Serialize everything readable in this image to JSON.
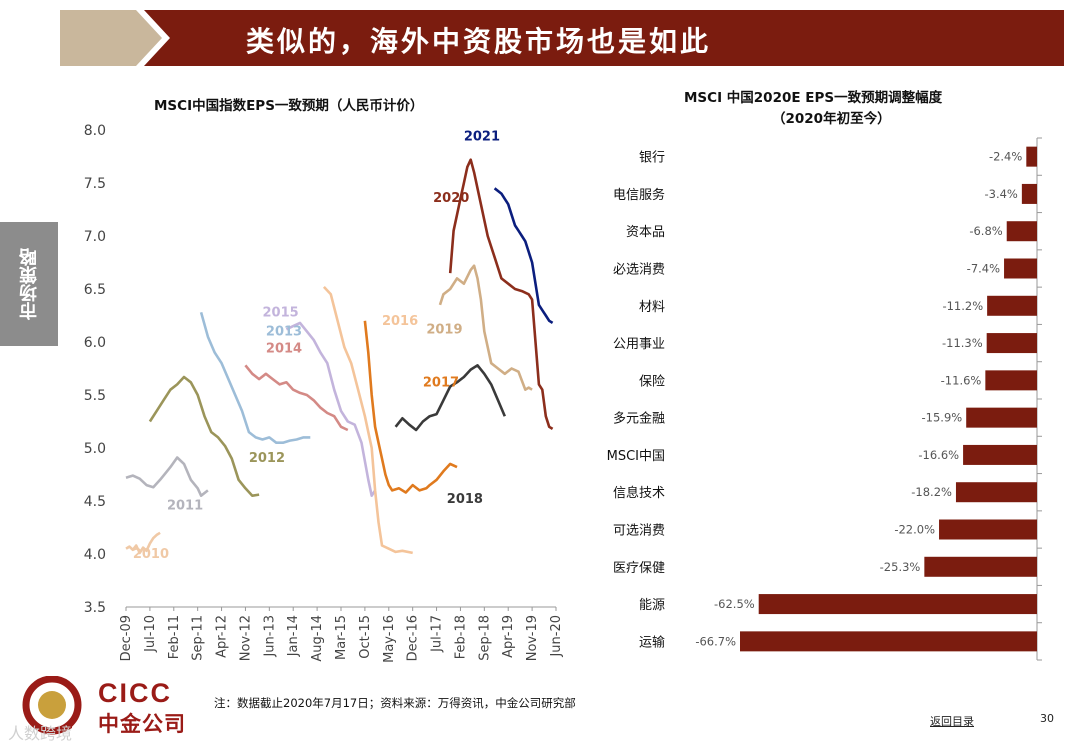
{
  "header": {
    "title": "类似的，海外中资股市场也是如此"
  },
  "side_tab": {
    "label": "市场策略"
  },
  "left_chart_title": "MSCI中国指数EPS一致预期（人民币计价）",
  "right_chart_title_line1": "MSCI 中国2020E EPS一致预期调整幅度",
  "right_chart_title_line2": "（2020年初至今）",
  "colors": {
    "banner": "#7b1c0f",
    "banner_light": "#c9b79c",
    "bar": "#7b1c0f",
    "logo": "#9a1b17"
  },
  "chart_data": [
    {
      "type": "line",
      "title": "MSCI中国指数EPS一致预期（人民币计价）",
      "xlabel": "",
      "ylabel": "",
      "ylim": [
        3.5,
        8.0
      ],
      "yticks": [
        "8.0",
        "7.5",
        "7.0",
        "6.5",
        "6.0",
        "5.5",
        "5.0",
        "4.5",
        "4.0",
        "3.5"
      ],
      "x_tick_labels": [
        "Dec-09",
        "Jul-10",
        "Feb-11",
        "Sep-11",
        "Apr-12",
        "Nov-12",
        "Jun-13",
        "Jan-14",
        "Aug-14",
        "Mar-15",
        "Oct-15",
        "May-16",
        "Dec-16",
        "Jul-17",
        "Feb-18",
        "Sep-18",
        "Apr-19",
        "Nov-19",
        "Jun-20"
      ],
      "x_unit": "months since Dec-09",
      "series": [
        {
          "name": "2010",
          "color": "#f0c9a6",
          "x": [
            0,
            1,
            2,
            3,
            4,
            5,
            6,
            7,
            8,
            9,
            10
          ],
          "y": [
            4.05,
            4.07,
            4.04,
            4.08,
            4.01,
            4.06,
            4.03,
            4.1,
            4.15,
            4.18,
            4.2
          ]
        },
        {
          "name": "2011",
          "color": "#b4b4bc",
          "x": [
            0,
            2,
            4,
            6,
            8,
            10,
            12,
            13,
            15,
            17,
            19,
            21,
            22,
            24
          ],
          "y": [
            4.72,
            4.74,
            4.71,
            4.65,
            4.63,
            4.7,
            4.78,
            4.82,
            4.91,
            4.85,
            4.7,
            4.62,
            4.55,
            4.6
          ]
        },
        {
          "name": "2012",
          "color": "#9b955a",
          "x": [
            7,
            9,
            11,
            13,
            15,
            17,
            19,
            21,
            23,
            25,
            27,
            29,
            31,
            33,
            35,
            37,
            39
          ],
          "y": [
            5.25,
            5.35,
            5.45,
            5.55,
            5.6,
            5.67,
            5.62,
            5.5,
            5.3,
            5.15,
            5.1,
            5.02,
            4.9,
            4.7,
            4.62,
            4.55,
            4.56
          ]
        },
        {
          "name": "2013",
          "color": "#9dbdd8",
          "x": [
            22,
            24,
            26,
            28,
            30,
            32,
            34,
            36,
            38,
            40,
            42,
            44,
            46,
            48,
            50,
            52,
            54
          ],
          "y": [
            6.28,
            6.05,
            5.9,
            5.8,
            5.65,
            5.5,
            5.35,
            5.15,
            5.1,
            5.08,
            5.1,
            5.05,
            5.05,
            5.07,
            5.08,
            5.1,
            5.1
          ]
        },
        {
          "name": "2014",
          "color": "#d48a86",
          "x": [
            35,
            37,
            39,
            41,
            43,
            45,
            47,
            49,
            51,
            53,
            55,
            57,
            59,
            61,
            63,
            65
          ],
          "y": [
            5.78,
            5.7,
            5.65,
            5.7,
            5.65,
            5.6,
            5.62,
            5.55,
            5.52,
            5.5,
            5.45,
            5.38,
            5.33,
            5.3,
            5.2,
            5.17
          ]
        },
        {
          "name": "2015",
          "color": "#c3b4dc",
          "x": [
            47,
            49,
            51,
            53,
            55,
            57,
            59,
            61,
            63,
            65,
            67,
            69,
            71,
            72,
            73
          ],
          "y": [
            6.12,
            6.15,
            6.18,
            6.1,
            6.02,
            5.9,
            5.8,
            5.55,
            5.35,
            5.25,
            5.22,
            5.05,
            4.7,
            4.55,
            4.6
          ]
        },
        {
          "name": "2016",
          "color": "#f4c49a",
          "x": [
            58,
            60,
            62,
            64,
            66,
            68,
            70,
            72,
            73,
            74,
            75,
            77,
            79,
            81,
            84
          ],
          "y": [
            6.52,
            6.45,
            6.2,
            5.95,
            5.8,
            5.55,
            5.3,
            5.0,
            4.6,
            4.3,
            4.08,
            4.05,
            4.02,
            4.03,
            4.01
          ]
        },
        {
          "name": "2017",
          "color": "#e07a1e",
          "x": [
            70,
            71,
            72,
            73,
            74,
            75,
            76,
            77,
            78,
            80,
            82,
            84,
            86,
            88,
            89,
            91,
            93,
            95,
            97
          ],
          "y": [
            6.2,
            5.9,
            5.5,
            5.2,
            5.05,
            4.9,
            4.75,
            4.65,
            4.6,
            4.62,
            4.58,
            4.65,
            4.6,
            4.62,
            4.65,
            4.7,
            4.78,
            4.85,
            4.82
          ]
        },
        {
          "name": "2018",
          "color": "#3a3a3a",
          "x": [
            79,
            81,
            83,
            85,
            87,
            89,
            91,
            93,
            95,
            97,
            99,
            101,
            103,
            105,
            107,
            109,
            111
          ],
          "y": [
            5.2,
            5.28,
            5.22,
            5.17,
            5.25,
            5.3,
            5.32,
            5.45,
            5.58,
            5.62,
            5.67,
            5.74,
            5.78,
            5.7,
            5.6,
            5.45,
            5.3
          ]
        },
        {
          "name": "2019",
          "color": "#d0ae86",
          "x": [
            92,
            93,
            95,
            97,
            99,
            101,
            102,
            103,
            104,
            105,
            107,
            109,
            111,
            113,
            115,
            117,
            118,
            119
          ],
          "y": [
            6.35,
            6.45,
            6.5,
            6.6,
            6.55,
            6.68,
            6.72,
            6.6,
            6.4,
            6.1,
            5.8,
            5.75,
            5.7,
            5.75,
            5.72,
            5.55,
            5.57,
            5.55
          ]
        },
        {
          "name": "2020",
          "color": "#8c2e1c",
          "x": [
            95,
            96,
            97,
            98,
            99,
            100,
            101,
            102,
            103,
            104,
            106,
            108,
            110,
            112,
            114,
            116,
            118,
            119,
            120,
            121,
            122,
            123,
            124,
            125
          ],
          "y": [
            6.65,
            7.05,
            7.2,
            7.35,
            7.5,
            7.65,
            7.72,
            7.6,
            7.45,
            7.3,
            7.0,
            6.8,
            6.6,
            6.55,
            6.5,
            6.48,
            6.45,
            6.4,
            6.0,
            5.6,
            5.55,
            5.3,
            5.2,
            5.18
          ]
        },
        {
          "name": "2021",
          "color": "#0b1e7e",
          "x": [
            108,
            110,
            111,
            112,
            113,
            114,
            115,
            116,
            117,
            118,
            119,
            120,
            121,
            122,
            123,
            124,
            125
          ],
          "y": [
            7.45,
            7.4,
            7.35,
            7.3,
            7.2,
            7.1,
            7.05,
            7.0,
            6.95,
            6.85,
            6.75,
            6.55,
            6.35,
            6.3,
            6.25,
            6.2,
            6.18
          ]
        }
      ]
    },
    {
      "type": "bar",
      "orientation": "horizontal",
      "title": "MSCI 中国2020E EPS一致预期调整幅度（2020年初至今）",
      "categories": [
        "银行",
        "电信服务",
        "资本品",
        "必选消费",
        "材料",
        "公用事业",
        "保险",
        "多元金融",
        "MSCI中国",
        "信息技术",
        "可选消费",
        "医疗保健",
        "能源",
        "运输"
      ],
      "values": [
        -2.4,
        -3.4,
        -6.8,
        -7.4,
        -11.2,
        -11.3,
        -11.6,
        -15.9,
        -16.6,
        -18.2,
        -22.0,
        -25.3,
        -62.5,
        -66.7
      ],
      "value_labels": [
        "-2.4%",
        "-3.4%",
        "-6.8%",
        "-7.4%",
        "-11.2%",
        "-11.3%",
        "-11.6%",
        "-15.9%",
        "-16.6%",
        "-18.2%",
        "-22.0%",
        "-25.3%",
        "-62.5%",
        "-66.7%"
      ],
      "xlim": [
        -70,
        0
      ]
    }
  ],
  "footer": {
    "logo_text": "CICC",
    "logo_cn": "中金公司",
    "watermark": "人数跨境",
    "note": "注：数据截止2020年7月17日；资料来源：万得资讯，中金公司研究部",
    "back_link": "返回目录",
    "page_number": "30"
  }
}
